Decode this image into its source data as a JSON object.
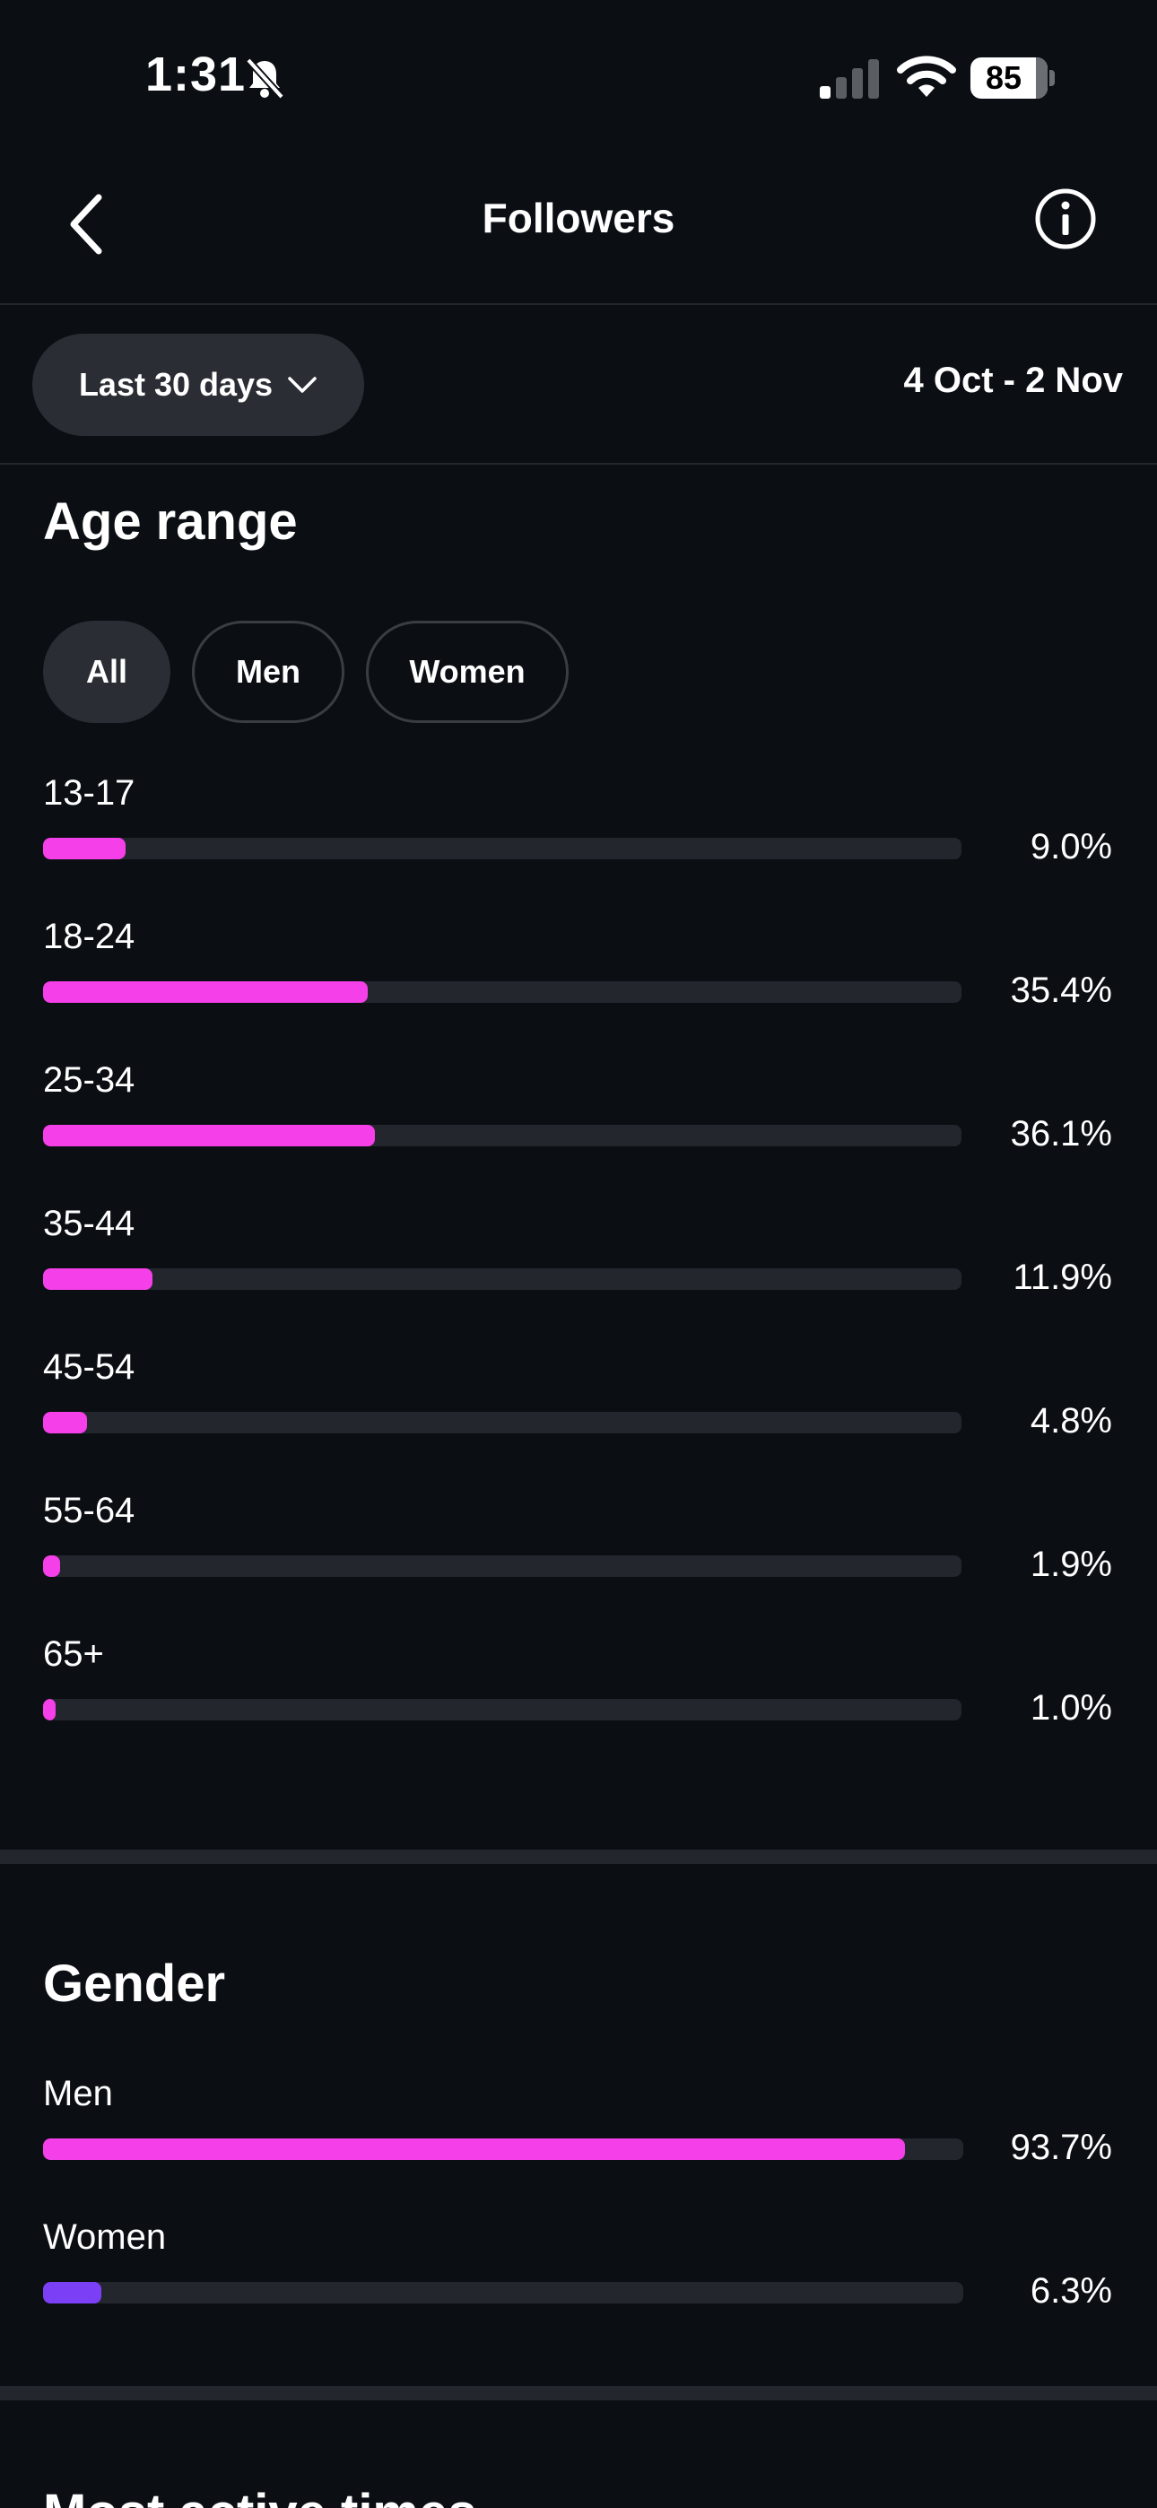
{
  "status_bar": {
    "time": "1:31",
    "battery": "85"
  },
  "header": {
    "title": "Followers"
  },
  "filter": {
    "period_label": "Last 30 days",
    "date_range": "4 Oct - 2 Nov"
  },
  "age_range": {
    "title": "Age range",
    "tabs": [
      "All",
      "Men",
      "Women"
    ],
    "bar_color": "#f53fe8",
    "rows": [
      {
        "label": "13-17",
        "value": 9.0,
        "value_text": "9.0%"
      },
      {
        "label": "18-24",
        "value": 35.4,
        "value_text": "35.4%"
      },
      {
        "label": "25-34",
        "value": 36.1,
        "value_text": "36.1%"
      },
      {
        "label": "35-44",
        "value": 11.9,
        "value_text": "11.9%"
      },
      {
        "label": "45-54",
        "value": 4.8,
        "value_text": "4.8%"
      },
      {
        "label": "55-64",
        "value": 1.9,
        "value_text": "1.9%"
      },
      {
        "label": "65+",
        "value": 1.0,
        "value_text": "1.0%"
      }
    ]
  },
  "gender": {
    "title": "Gender",
    "rows": [
      {
        "label": "Men",
        "value": 93.7,
        "value_text": "93.7%",
        "color": "#f53fe8"
      },
      {
        "label": "Women",
        "value": 6.3,
        "value_text": "6.3%",
        "color": "#7b3ff5"
      }
    ]
  },
  "next_section": {
    "title": "Most active times"
  },
  "chart_data": [
    {
      "type": "bar",
      "title": "Age range",
      "categories": [
        "13-17",
        "18-24",
        "25-34",
        "35-44",
        "45-54",
        "55-64",
        "65+"
      ],
      "values": [
        9.0,
        35.4,
        36.1,
        11.9,
        4.8,
        1.9,
        1.0
      ],
      "ylim": [
        0,
        100
      ]
    },
    {
      "type": "bar",
      "title": "Gender",
      "categories": [
        "Men",
        "Women"
      ],
      "values": [
        93.7,
        6.3
      ],
      "ylim": [
        0,
        100
      ]
    }
  ]
}
